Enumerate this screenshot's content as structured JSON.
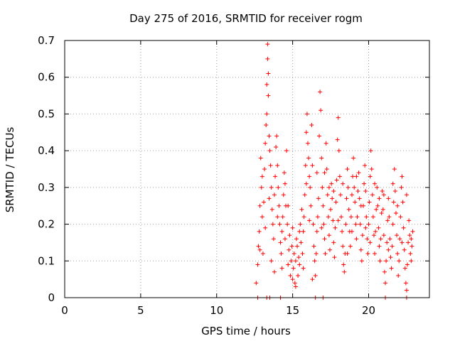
{
  "chart_data": {
    "type": "scatter",
    "title": "Day 275 of 2016, SRMTID for receiver rogm",
    "xlabel": "GPS time / hours",
    "ylabel": "SRMTID / TECUs",
    "xlim": [
      0,
      24
    ],
    "ylim": [
      0,
      0.7
    ],
    "x_ticks": [
      0,
      5,
      10,
      15,
      20
    ],
    "x_tick_labels": [
      "0",
      "5",
      "10",
      "15",
      "20"
    ],
    "y_ticks": [
      0,
      0.1,
      0.2,
      0.3,
      0.4,
      0.5,
      0.6,
      0.7
    ],
    "y_tick_labels": [
      "0",
      "0.1",
      "0.2",
      "0.3",
      "0.4",
      "0.5",
      "0.6",
      "0.7"
    ],
    "grid": true,
    "marker": "+",
    "color": "#ff0000",
    "series": [
      {
        "name": "SRMTID",
        "points": [
          [
            12.7,
            0.0
          ],
          [
            13.3,
            0.0
          ],
          [
            13.5,
            0.0
          ],
          [
            14.2,
            0.0
          ],
          [
            16.5,
            0.0
          ],
          [
            17.0,
            0.0
          ],
          [
            21.1,
            0.0
          ],
          [
            22.5,
            0.0
          ],
          [
            12.6,
            0.04
          ],
          [
            12.7,
            0.09
          ],
          [
            12.75,
            0.14
          ],
          [
            12.8,
            0.18
          ],
          [
            12.85,
            0.25
          ],
          [
            12.9,
            0.38
          ],
          [
            12.95,
            0.3
          ],
          [
            13.0,
            0.22
          ],
          [
            13.05,
            0.12
          ],
          [
            13.1,
            0.26
          ],
          [
            13.15,
            0.35
          ],
          [
            13.2,
            0.42
          ],
          [
            13.25,
            0.47
          ],
          [
            13.3,
            0.5
          ],
          [
            13.3,
            0.58
          ],
          [
            13.35,
            0.65
          ],
          [
            13.35,
            0.69
          ],
          [
            13.4,
            0.61
          ],
          [
            13.4,
            0.55
          ],
          [
            13.45,
            0.44
          ],
          [
            13.5,
            0.4
          ],
          [
            13.55,
            0.36
          ],
          [
            13.6,
            0.3
          ],
          [
            13.65,
            0.24
          ],
          [
            13.7,
            0.2
          ],
          [
            13.75,
            0.16
          ],
          [
            13.8,
            0.28
          ],
          [
            13.85,
            0.33
          ],
          [
            13.9,
            0.41
          ],
          [
            13.95,
            0.44
          ],
          [
            14.0,
            0.36
          ],
          [
            14.05,
            0.3
          ],
          [
            14.1,
            0.25
          ],
          [
            14.15,
            0.2
          ],
          [
            14.2,
            0.15
          ],
          [
            14.25,
            0.12
          ],
          [
            14.3,
            0.18
          ],
          [
            14.35,
            0.22
          ],
          [
            14.4,
            0.28
          ],
          [
            14.45,
            0.34
          ],
          [
            14.5,
            0.31
          ],
          [
            14.55,
            0.25
          ],
          [
            14.6,
            0.4
          ],
          [
            14.65,
            0.2
          ],
          [
            14.7,
            0.09
          ],
          [
            14.75,
            0.13
          ],
          [
            14.8,
            0.17
          ],
          [
            14.85,
            0.06
          ],
          [
            14.9,
            0.1
          ],
          [
            14.95,
            0.14
          ],
          [
            15.0,
            0.19
          ],
          [
            15.05,
            0.08
          ],
          [
            15.1,
            0.12
          ],
          [
            15.15,
            0.04
          ],
          [
            15.2,
            0.1
          ],
          [
            15.25,
            0.16
          ],
          [
            15.3,
            0.14
          ],
          [
            15.35,
            0.06
          ],
          [
            15.4,
            0.11
          ],
          [
            15.45,
            0.09
          ],
          [
            15.5,
            0.2
          ],
          [
            15.55,
            0.15
          ],
          [
            15.6,
            0.24
          ],
          [
            15.65,
            0.12
          ],
          [
            15.7,
            0.18
          ],
          [
            15.75,
            0.22
          ],
          [
            15.8,
            0.28
          ],
          [
            15.85,
            0.36
          ],
          [
            15.9,
            0.45
          ],
          [
            15.95,
            0.5
          ],
          [
            16.0,
            0.42
          ],
          [
            16.05,
            0.38
          ],
          [
            16.1,
            0.33
          ],
          [
            16.15,
            0.3
          ],
          [
            16.2,
            0.25
          ],
          [
            16.25,
            0.47
          ],
          [
            16.3,
            0.36
          ],
          [
            16.35,
            0.2
          ],
          [
            16.4,
            0.14
          ],
          [
            16.45,
            0.1
          ],
          [
            16.5,
            0.06
          ],
          [
            16.55,
            0.12
          ],
          [
            16.6,
            0.18
          ],
          [
            16.65,
            0.22
          ],
          [
            16.7,
            0.27
          ],
          [
            16.75,
            0.44
          ],
          [
            16.8,
            0.56
          ],
          [
            16.85,
            0.51
          ],
          [
            16.9,
            0.38
          ],
          [
            16.95,
            0.3
          ],
          [
            17.0,
            0.25
          ],
          [
            17.05,
            0.2
          ],
          [
            17.1,
            0.16
          ],
          [
            17.15,
            0.12
          ],
          [
            17.2,
            0.42
          ],
          [
            17.25,
            0.35
          ],
          [
            17.3,
            0.28
          ],
          [
            17.35,
            0.22
          ],
          [
            17.4,
            0.17
          ],
          [
            17.45,
            0.13
          ],
          [
            17.5,
            0.24
          ],
          [
            17.55,
            0.31
          ],
          [
            17.6,
            0.27
          ],
          [
            17.65,
            0.21
          ],
          [
            17.7,
            0.15
          ],
          [
            17.75,
            0.11
          ],
          [
            17.8,
            0.19
          ],
          [
            17.85,
            0.26
          ],
          [
            17.9,
            0.32
          ],
          [
            17.95,
            0.43
          ],
          [
            18.0,
            0.49
          ],
          [
            18.05,
            0.4
          ],
          [
            18.1,
            0.33
          ],
          [
            18.15,
            0.28
          ],
          [
            18.2,
            0.22
          ],
          [
            18.25,
            0.18
          ],
          [
            18.3,
            0.14
          ],
          [
            18.35,
            0.09
          ],
          [
            18.4,
            0.07
          ],
          [
            18.45,
            0.12
          ],
          [
            18.5,
            0.2
          ],
          [
            18.55,
            0.27
          ],
          [
            18.6,
            0.35
          ],
          [
            18.65,
            0.3
          ],
          [
            18.7,
            0.24
          ],
          [
            18.75,
            0.18
          ],
          [
            18.8,
            0.14
          ],
          [
            18.85,
            0.22
          ],
          [
            18.9,
            0.28
          ],
          [
            18.95,
            0.33
          ],
          [
            19.0,
            0.38
          ],
          [
            19.05,
            0.3
          ],
          [
            19.1,
            0.26
          ],
          [
            19.15,
            0.2
          ],
          [
            19.2,
            0.16
          ],
          [
            19.25,
            0.22
          ],
          [
            19.3,
            0.29
          ],
          [
            19.35,
            0.34
          ],
          [
            19.4,
            0.27
          ],
          [
            19.45,
            0.2
          ],
          [
            19.5,
            0.13
          ],
          [
            19.55,
            0.1
          ],
          [
            19.6,
            0.17
          ],
          [
            19.65,
            0.25
          ],
          [
            19.7,
            0.31
          ],
          [
            19.75,
            0.36
          ],
          [
            19.8,
            0.29
          ],
          [
            19.85,
            0.22
          ],
          [
            19.9,
            0.16
          ],
          [
            19.95,
            0.12
          ],
          [
            20.0,
            0.2
          ],
          [
            20.05,
            0.26
          ],
          [
            20.1,
            0.33
          ],
          [
            20.15,
            0.4
          ],
          [
            20.2,
            0.35
          ],
          [
            20.25,
            0.28
          ],
          [
            20.3,
            0.22
          ],
          [
            20.35,
            0.17
          ],
          [
            20.4,
            0.12
          ],
          [
            20.45,
            0.18
          ],
          [
            20.5,
            0.24
          ],
          [
            20.55,
            0.3
          ],
          [
            20.6,
            0.25
          ],
          [
            20.65,
            0.19
          ],
          [
            20.7,
            0.14
          ],
          [
            20.75,
            0.1
          ],
          [
            20.8,
            0.16
          ],
          [
            20.85,
            0.23
          ],
          [
            20.9,
            0.29
          ],
          [
            20.95,
            0.24
          ],
          [
            21.0,
            0.17
          ],
          [
            21.05,
            0.07
          ],
          [
            21.1,
            0.04
          ],
          [
            21.15,
            0.1
          ],
          [
            21.2,
            0.15
          ],
          [
            21.25,
            0.21
          ],
          [
            21.3,
            0.27
          ],
          [
            21.35,
            0.22
          ],
          [
            21.4,
            0.16
          ],
          [
            21.45,
            0.11
          ],
          [
            21.5,
            0.08
          ],
          [
            21.55,
            0.14
          ],
          [
            21.6,
            0.2
          ],
          [
            21.65,
            0.26
          ],
          [
            21.7,
            0.35
          ],
          [
            21.75,
            0.29
          ],
          [
            21.8,
            0.23
          ],
          [
            21.85,
            0.17
          ],
          [
            21.9,
            0.12
          ],
          [
            21.95,
            0.06
          ],
          [
            22.0,
            0.1
          ],
          [
            22.05,
            0.16
          ],
          [
            22.1,
            0.22
          ],
          [
            22.15,
            0.3
          ],
          [
            22.2,
            0.33
          ],
          [
            22.25,
            0.26
          ],
          [
            22.3,
            0.19
          ],
          [
            22.35,
            0.13
          ],
          [
            22.4,
            0.08
          ],
          [
            22.45,
            0.04
          ],
          [
            22.5,
            0.02
          ],
          [
            22.55,
            0.09
          ],
          [
            22.6,
            0.15
          ],
          [
            22.65,
            0.21
          ],
          [
            22.7,
            0.17
          ],
          [
            22.75,
            0.12
          ],
          [
            22.8,
            0.16
          ],
          [
            22.85,
            0.14
          ],
          [
            22.9,
            0.18
          ],
          [
            12.85,
            0.13
          ],
          [
            13.0,
            0.33
          ],
          [
            13.2,
            0.19
          ],
          [
            13.45,
            0.27
          ],
          [
            13.6,
            0.1
          ],
          [
            13.8,
            0.07
          ],
          [
            14.0,
            0.22
          ],
          [
            14.3,
            0.08
          ],
          [
            14.5,
            0.16
          ],
          [
            14.7,
            0.25
          ],
          [
            15.0,
            0.05
          ],
          [
            15.2,
            0.03
          ],
          [
            15.45,
            0.18
          ],
          [
            15.7,
            0.08
          ],
          [
            15.9,
            0.31
          ],
          [
            16.1,
            0.21
          ],
          [
            16.3,
            0.05
          ],
          [
            16.6,
            0.34
          ],
          [
            16.9,
            0.19
          ],
          [
            17.1,
            0.34
          ],
          [
            17.4,
            0.3
          ],
          [
            17.7,
            0.29
          ],
          [
            18.0,
            0.21
          ],
          [
            18.3,
            0.31
          ],
          [
            18.6,
            0.12
          ],
          [
            18.9,
            0.18
          ],
          [
            19.2,
            0.33
          ],
          [
            19.5,
            0.25
          ],
          [
            19.8,
            0.19
          ],
          [
            20.1,
            0.15
          ],
          [
            20.4,
            0.31
          ],
          [
            20.7,
            0.27
          ],
          [
            21.0,
            0.28
          ],
          [
            21.3,
            0.13
          ],
          [
            21.6,
            0.31
          ],
          [
            21.9,
            0.25
          ],
          [
            22.2,
            0.15
          ],
          [
            22.5,
            0.28
          ],
          [
            22.8,
            0.1
          ]
        ]
      }
    ]
  }
}
